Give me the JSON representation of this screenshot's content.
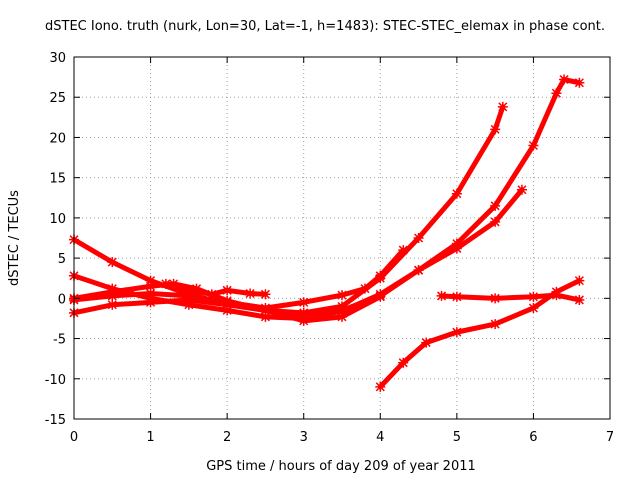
{
  "chart_data": {
    "type": "scatter",
    "title": "dSTEC Iono. truth (nurk, Lon=30, Lat=-1, h=1483): STEC-STEC_elemax in phase cont.",
    "xlabel": "GPS time / hours of day 209 of year 2011",
    "ylabel": "dSTEC  / TECUs",
    "xlim": [
      0,
      7
    ],
    "ylim": [
      -15,
      30
    ],
    "xticks": [
      "0",
      "1",
      "2",
      "3",
      "4",
      "5",
      "6",
      "7"
    ],
    "yticks": [
      "-15",
      "-10",
      "-5",
      "0",
      "5",
      "10",
      "15",
      "20",
      "25",
      "30"
    ],
    "grid": true,
    "marker": "cross",
    "color": "#ff0000",
    "series": [
      {
        "x": [
          0,
          0.5,
          1,
          1.5,
          2,
          2.5,
          3,
          3.5,
          4,
          4.5,
          5,
          5.5,
          5.6
        ],
        "y": [
          7.3,
          4.5,
          2.2,
          0.5,
          -0.7,
          -1.5,
          -1.8,
          -1.0,
          2.5,
          7.5,
          13,
          21,
          23.8
        ]
      },
      {
        "x": [
          0,
          0.5,
          1,
          1.5,
          2,
          2.5,
          3,
          3.5,
          4,
          4.5,
          5,
          5.5,
          6,
          6.3,
          6.4,
          6.6
        ],
        "y": [
          2.8,
          1.2,
          0,
          -0.8,
          -1.5,
          -2.3,
          -2.5,
          -1.6,
          0.5,
          3.5,
          6.8,
          11.5,
          19,
          25.5,
          27.2,
          26.8
        ]
      },
      {
        "x": [
          0,
          0.5,
          1,
          1.3,
          1.6,
          2,
          2.5,
          3,
          3.5,
          4,
          4.5,
          5,
          5.5,
          5.85
        ],
        "y": [
          0,
          0.8,
          1.5,
          1.8,
          1.2,
          -0.3,
          -1.5,
          -2.2,
          -1.5,
          0.3,
          3.5,
          6.2,
          9.5,
          13.5
        ]
      },
      {
        "x": [
          0,
          0.5,
          1,
          1.5,
          2,
          2.5,
          3,
          3.5,
          3.8,
          4,
          4.3
        ],
        "y": [
          -0.2,
          0.3,
          0.6,
          0.3,
          -0.5,
          -1.2,
          -0.5,
          0.4,
          1.2,
          2.8,
          6.0
        ]
      },
      {
        "x": [
          0,
          0.5,
          1,
          1.5,
          2,
          2.5,
          3,
          3.5,
          4
        ],
        "y": [
          -1.8,
          -0.8,
          -0.5,
          -0.2,
          -0.8,
          -1.5,
          -2.8,
          -2.3,
          0.2
        ]
      },
      {
        "x": [
          1.2,
          1.5,
          1.8,
          2.0,
          2.3,
          2.5
        ],
        "y": [
          1.8,
          1.0,
          0.5,
          1.0,
          0.6,
          0.5
        ]
      },
      {
        "x": [
          4,
          4.3,
          4.6,
          5,
          5.5,
          6,
          6.3,
          6.6
        ],
        "y": [
          -11,
          -8,
          -5.5,
          -4.2,
          -3.2,
          -1.2,
          0.8,
          2.2
        ]
      },
      {
        "x": [
          4.8,
          5,
          5.5,
          6,
          6.3,
          6.6
        ],
        "y": [
          0.3,
          0.2,
          0,
          0.2,
          0.4,
          -0.2
        ]
      }
    ]
  }
}
